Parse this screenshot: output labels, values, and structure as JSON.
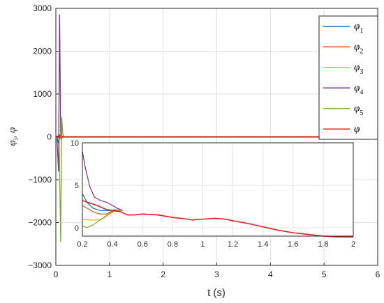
{
  "chart_data": {
    "type": "line",
    "xlabel": "t (s)",
    "ylabel_parts": [
      "φ",
      "i",
      ", φ"
    ],
    "xlim": [
      0,
      6
    ],
    "ylim": [
      -3000,
      3000
    ],
    "xticks": [
      0,
      1,
      2,
      3,
      4,
      5,
      6
    ],
    "yticks": [
      -3000,
      -2000,
      -1000,
      0,
      1000,
      2000,
      3000
    ],
    "grid": true,
    "legend_position": "top-right",
    "legend": [
      {
        "symbol": "φ",
        "sub": "1",
        "color": "#0072BD"
      },
      {
        "symbol": "φ",
        "sub": "2",
        "color": "#D95319"
      },
      {
        "symbol": "φ",
        "sub": "3",
        "color": "#EDB120"
      },
      {
        "symbol": "φ",
        "sub": "4",
        "color": "#7E2F8E"
      },
      {
        "symbol": "φ",
        "sub": "5",
        "color": "#77AC30"
      },
      {
        "symbol": "φ",
        "sub": "",
        "color": "#E41A1C"
      }
    ],
    "main_series": [
      {
        "color": "#7E2F8E",
        "points": [
          [
            0.02,
            0
          ],
          [
            0.05,
            -800
          ],
          [
            0.07,
            2850
          ],
          [
            0.09,
            100
          ],
          [
            0.11,
            0
          ],
          [
            5.5,
            0
          ]
        ]
      },
      {
        "color": "#77AC30",
        "points": [
          [
            0.06,
            0
          ],
          [
            0.09,
            -2450
          ],
          [
            0.11,
            450
          ],
          [
            0.13,
            50
          ],
          [
            0.16,
            0
          ],
          [
            5.5,
            0
          ]
        ]
      },
      {
        "color": "#0072BD",
        "points": [
          [
            0.02,
            0
          ],
          [
            0.05,
            -150
          ],
          [
            0.08,
            50
          ],
          [
            0.12,
            0
          ],
          [
            5.5,
            0
          ]
        ]
      },
      {
        "color": "#D95319",
        "points": [
          [
            0.02,
            0
          ],
          [
            0.06,
            60
          ],
          [
            0.1,
            -40
          ],
          [
            0.14,
            0
          ],
          [
            5.5,
            0
          ]
        ]
      },
      {
        "color": "#EDB120",
        "points": [
          [
            0.02,
            0
          ],
          [
            0.07,
            -80
          ],
          [
            0.11,
            30
          ],
          [
            0.15,
            0
          ],
          [
            5.5,
            0
          ]
        ]
      },
      {
        "color": "#E41A1C",
        "points": [
          [
            0,
            0
          ],
          [
            5.5,
            0
          ]
        ]
      }
    ],
    "inset": {
      "xlim": [
        0.2,
        2
      ],
      "ylim": [
        -1,
        10
      ],
      "xticks": [
        0.2,
        0.4,
        0.6,
        0.8,
        1,
        1.2,
        1.4,
        1.6,
        1.8,
        2
      ],
      "yticks": [
        0,
        5,
        10
      ],
      "grid": true,
      "series": [
        {
          "color": "#7E2F8E",
          "points": [
            [
              0.2,
              9
            ],
            [
              0.22,
              7
            ],
            [
              0.25,
              4.8
            ],
            [
              0.28,
              3.6
            ],
            [
              0.32,
              3.2
            ],
            [
              0.36,
              3.0
            ],
            [
              0.4,
              2.6
            ],
            [
              0.43,
              2.3
            ],
            [
              0.47,
              2.0
            ]
          ]
        },
        {
          "color": "#0072BD",
          "points": [
            [
              0.2,
              4.0
            ],
            [
              0.23,
              3.0
            ],
            [
              0.27,
              2.3
            ],
            [
              0.32,
              2.0
            ],
            [
              0.37,
              2.0
            ],
            [
              0.42,
              2.1
            ],
            [
              0.47,
              2.0
            ]
          ]
        },
        {
          "color": "#D95319",
          "points": [
            [
              0.2,
              2.6
            ],
            [
              0.24,
              2.2
            ],
            [
              0.28,
              1.8
            ],
            [
              0.32,
              1.6
            ],
            [
              0.36,
              1.6
            ],
            [
              0.4,
              2.0
            ],
            [
              0.44,
              2.1
            ],
            [
              0.47,
              2.0
            ]
          ]
        },
        {
          "color": "#EDB120",
          "points": [
            [
              0.2,
              1.0
            ],
            [
              0.25,
              0.9
            ],
            [
              0.3,
              0.9
            ],
            [
              0.34,
              1.1
            ],
            [
              0.38,
              1.6
            ],
            [
              0.42,
              2.0
            ],
            [
              0.47,
              2.0
            ]
          ]
        },
        {
          "color": "#77AC30",
          "points": [
            [
              0.2,
              0.2
            ],
            [
              0.23,
              0.0
            ],
            [
              0.27,
              0.3
            ],
            [
              0.31,
              0.8
            ],
            [
              0.35,
              1.3
            ],
            [
              0.39,
              1.8
            ],
            [
              0.43,
              2.1
            ],
            [
              0.47,
              2.0
            ]
          ]
        },
        {
          "color": "#E41A1C",
          "points": [
            [
              0.2,
              3.2
            ],
            [
              0.25,
              2.9
            ],
            [
              0.3,
              2.6
            ],
            [
              0.35,
              2.2
            ],
            [
              0.4,
              2.0
            ],
            [
              0.45,
              1.9
            ],
            [
              0.5,
              1.5
            ],
            [
              0.55,
              1.5
            ],
            [
              0.6,
              1.6
            ],
            [
              0.7,
              1.5
            ],
            [
              0.8,
              1.2
            ],
            [
              0.9,
              1.0
            ],
            [
              0.93,
              0.9
            ],
            [
              1.0,
              1.0
            ],
            [
              1.08,
              1.1
            ],
            [
              1.15,
              1.0
            ],
            [
              1.2,
              0.8
            ],
            [
              1.3,
              0.5
            ],
            [
              1.4,
              0.1
            ],
            [
              1.5,
              -0.3
            ],
            [
              1.6,
              -0.6
            ],
            [
              1.7,
              -0.8
            ],
            [
              1.8,
              -1.0
            ],
            [
              1.9,
              -1.1
            ],
            [
              2.0,
              -1.1
            ]
          ]
        }
      ]
    }
  }
}
